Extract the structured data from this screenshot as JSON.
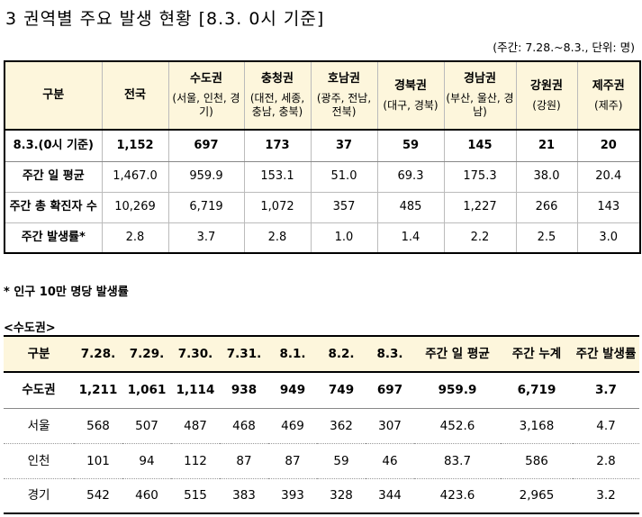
{
  "title": "3 권역별 주요 발생 현황 [8.3. 0시 기준]",
  "unit_note": "(주간: 7.28.~8.3., 단위: 명)",
  "table1": {
    "header": [
      {
        "main": "구분",
        "sub": ""
      },
      {
        "main": "전국",
        "sub": ""
      },
      {
        "main": "수도권",
        "sub": "(서울, 인천, 경기)"
      },
      {
        "main": "충청권",
        "sub": "(대전, 세종, 충남, 충북)"
      },
      {
        "main": "호남권",
        "sub": "(광주, 전남, 전북)"
      },
      {
        "main": "경북권",
        "sub": "(대구, 경북)"
      },
      {
        "main": "경남권",
        "sub": "(부산, 울산, 경남)"
      },
      {
        "main": "강원권",
        "sub": "(강원)"
      },
      {
        "main": "제주권",
        "sub": "(제주)"
      }
    ],
    "rows": [
      [
        "8.3.(0시 기준)",
        "1,152",
        "697",
        "173",
        "37",
        "59",
        "145",
        "21",
        "20"
      ],
      [
        "주간 일 평균",
        "1,467.0",
        "959.9",
        "153.1",
        "51.0",
        "69.3",
        "175.3",
        "38.0",
        "20.4"
      ],
      [
        "주간 총 확진자 수",
        "10,269",
        "6,719",
        "1,072",
        "357",
        "485",
        "1,227",
        "266",
        "143"
      ],
      [
        "주간 발생률*",
        "2.8",
        "3.7",
        "2.8",
        "1.0",
        "1.4",
        "2.2",
        "2.5",
        "3.0"
      ]
    ]
  },
  "footnote": "* 인구 10만 명당 발생률",
  "section_title": "<수도권>",
  "table2": {
    "header": [
      "구분",
      "7.28.",
      "7.29.",
      "7.30.",
      "7.31.",
      "8.1.",
      "8.2.",
      "8.3.",
      "주간 일 평균",
      "주간 누계",
      "주간 발생률"
    ],
    "rows": [
      [
        "수도권",
        "1,211",
        "1,061",
        "1,114",
        "938",
        "949",
        "749",
        "697",
        "959.9",
        "6,719",
        "3.7"
      ],
      [
        "서울",
        "568",
        "507",
        "487",
        "468",
        "469",
        "362",
        "307",
        "452.6",
        "3,168",
        "4.7"
      ],
      [
        "인천",
        "101",
        "94",
        "112",
        "87",
        "87",
        "59",
        "46",
        "83.7",
        "586",
        "2.8"
      ],
      [
        "경기",
        "542",
        "460",
        "515",
        "383",
        "393",
        "328",
        "344",
        "423.6",
        "2,965",
        "3.2"
      ]
    ]
  }
}
